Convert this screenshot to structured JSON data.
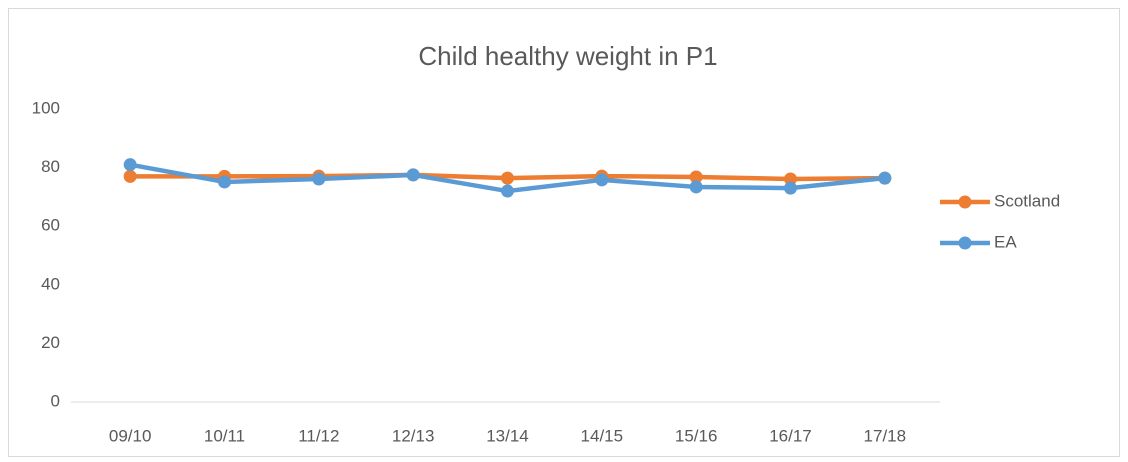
{
  "chart_data": {
    "type": "line",
    "title": "Child healthy weight in P1",
    "categories": [
      "09/10",
      "10/11",
      "11/12",
      "12/13",
      "13/14",
      "14/15",
      "15/16",
      "16/17",
      "17/18"
    ],
    "series": [
      {
        "name": "Scotland",
        "color": "#ed7d31",
        "values": [
          77,
          77,
          77.1,
          77.5,
          76.4,
          77.1,
          76.8,
          76.1,
          76.4
        ]
      },
      {
        "name": "EA",
        "color": "#5b9bd5",
        "values": [
          81,
          75.1,
          76.1,
          77.5,
          72,
          75.8,
          73.4,
          73,
          76.4
        ]
      }
    ],
    "ylim": [
      0,
      100
    ],
    "yticks": [
      0,
      20,
      40,
      60,
      80,
      100
    ],
    "grid": false,
    "legend": "right"
  }
}
